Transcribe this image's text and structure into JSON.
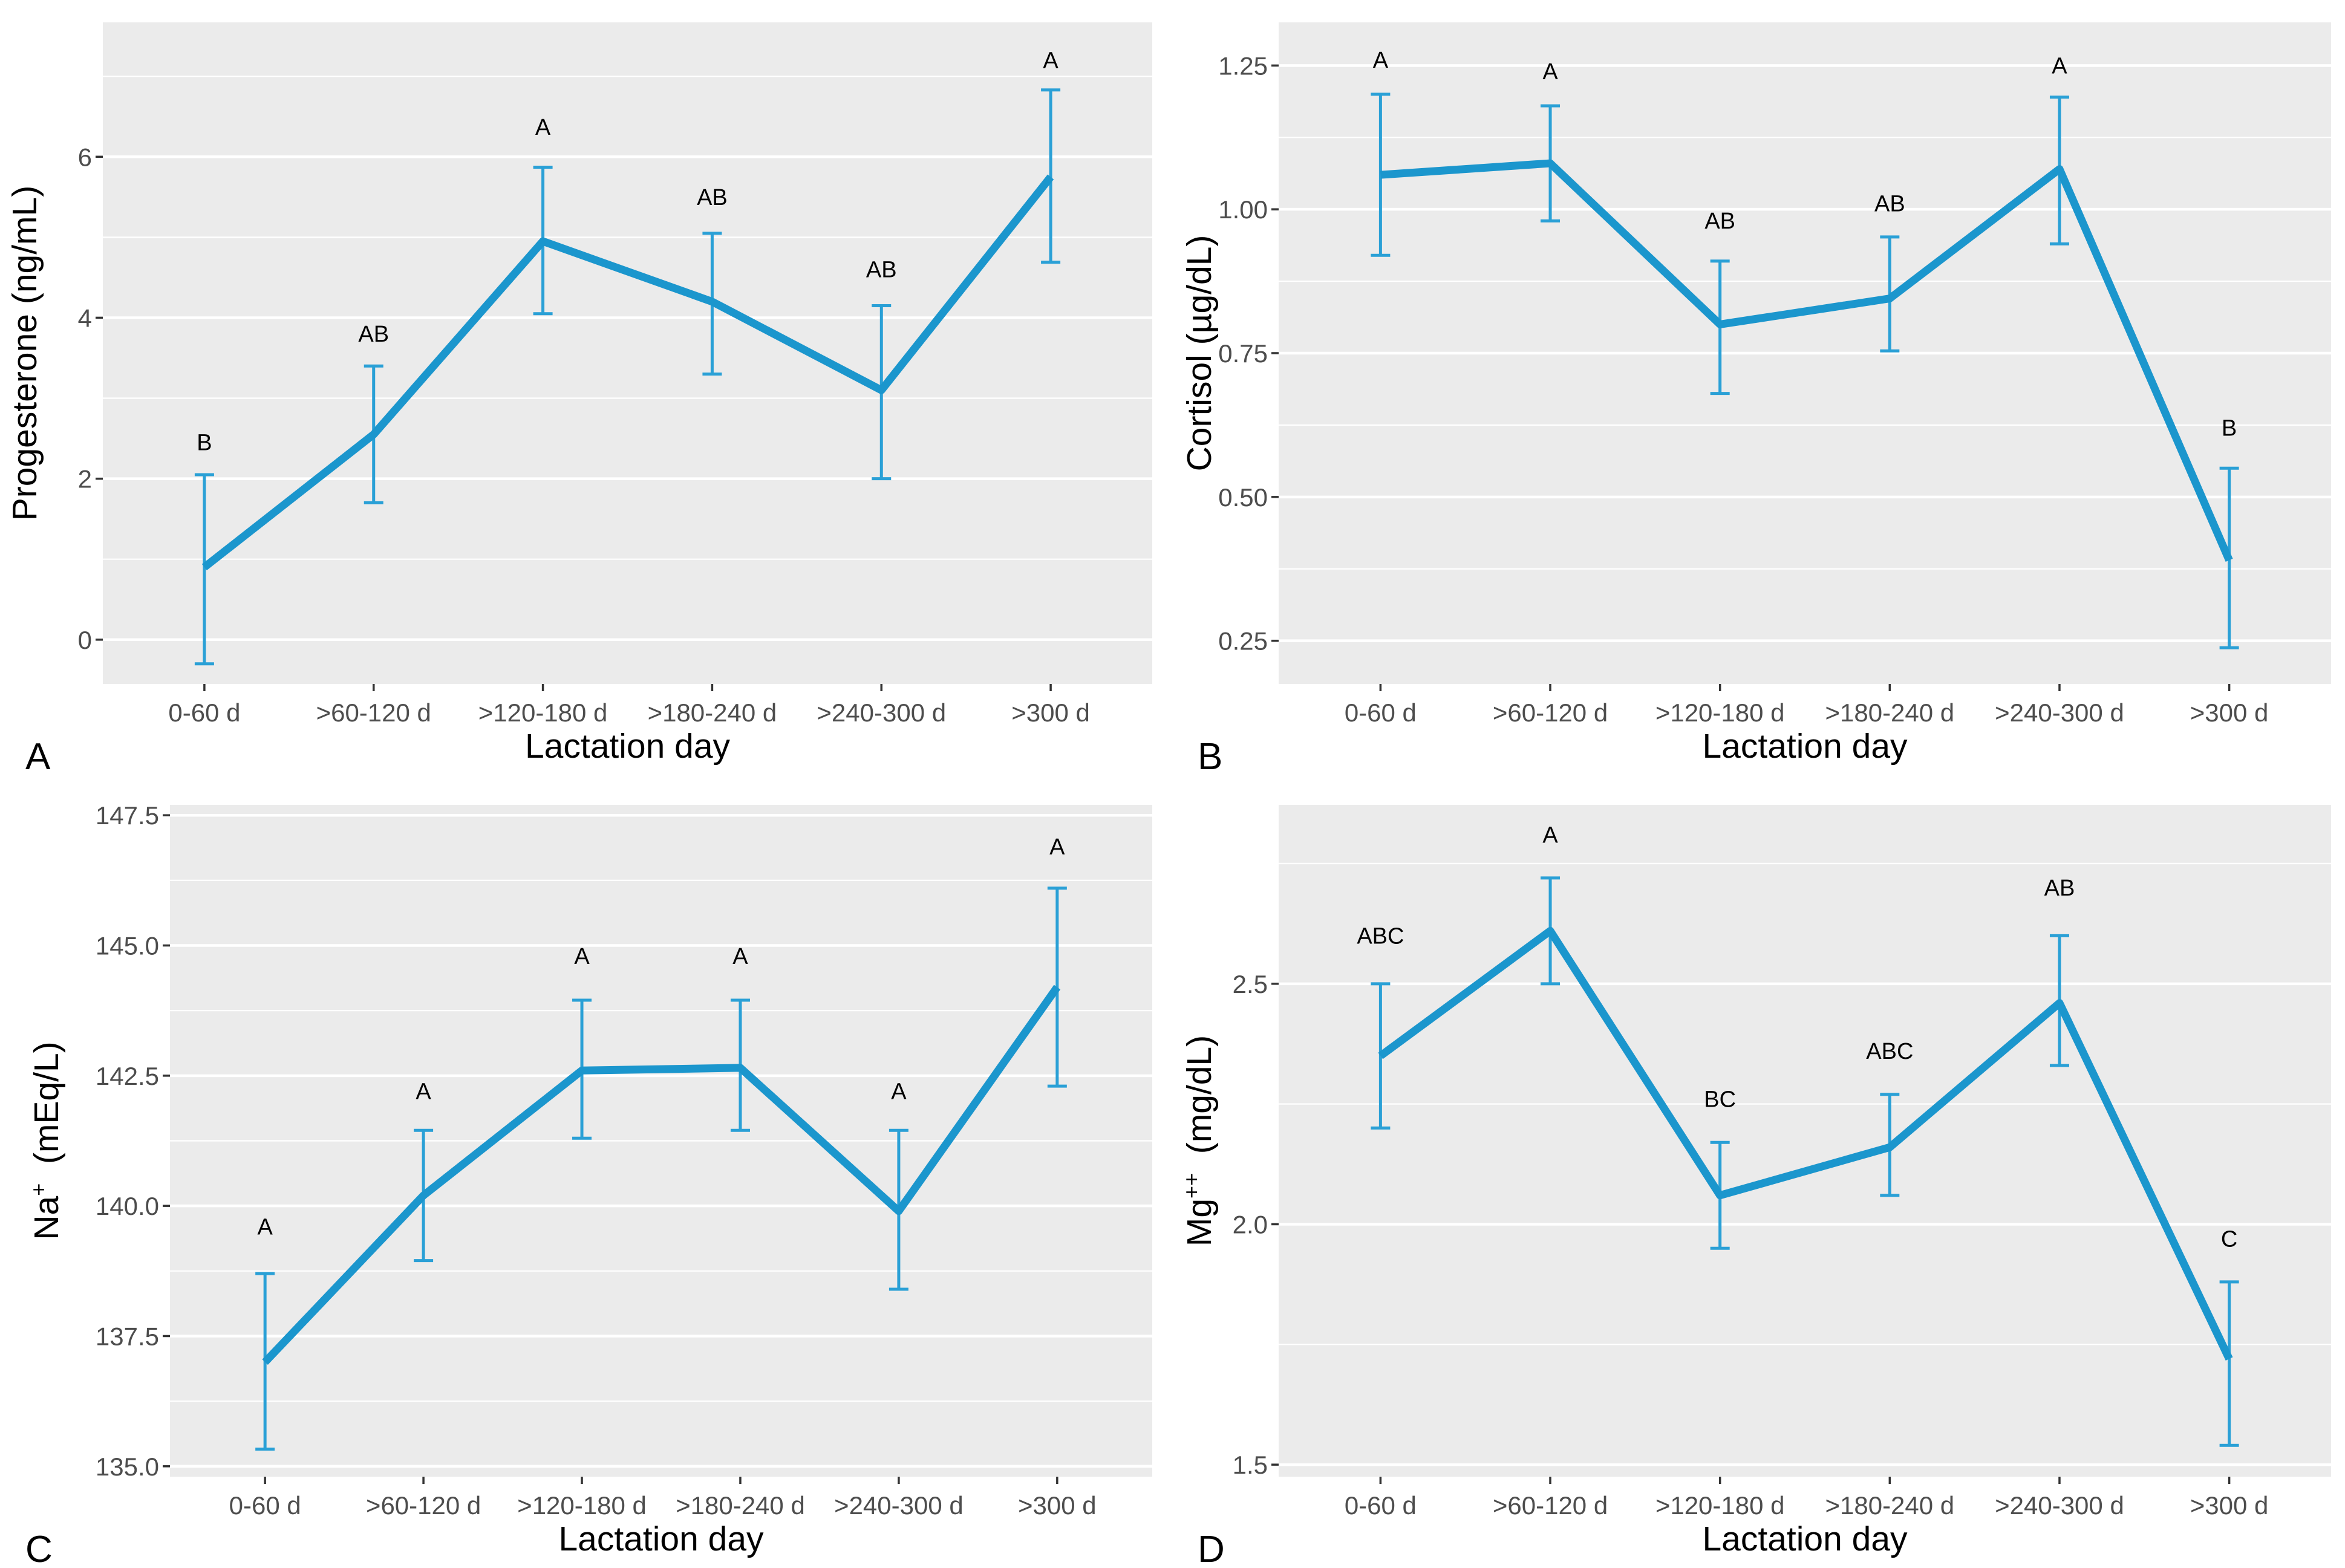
{
  "figure": {
    "background": "#FFFFFF",
    "panel_bg": "#EBEBEB",
    "grid_color": "#FFFFFF",
    "line_color": "#1B96CD",
    "errorbar_color": "#2AA0D6",
    "tick_label_color": "#4D4D4D",
    "tick_mark_color": "#333333",
    "text_color": "#000000"
  },
  "chart_data": [
    {
      "panel_label": "A",
      "type": "line",
      "title": "",
      "xlabel": "Lactation day",
      "ylabel": {
        "base": "Progesterone (ng/mL)",
        "sup": "",
        "unit": ""
      },
      "categories": [
        "0-60 d",
        ">60-120 d",
        ">120-180 d",
        ">180-240 d",
        ">240-300 d",
        ">300 d"
      ],
      "values": [
        0.9,
        2.55,
        4.95,
        4.2,
        3.1,
        5.75
      ],
      "err_low": [
        -0.3,
        1.7,
        4.05,
        3.3,
        2.0,
        4.69
      ],
      "err_high": [
        2.05,
        3.4,
        5.87,
        5.05,
        4.15,
        6.83
      ],
      "sig_letters": [
        "B",
        "AB",
        "A",
        "AB",
        "AB",
        "A"
      ],
      "sig_letter_y": [
        2.45,
        3.8,
        6.37,
        5.5,
        4.6,
        7.2
      ],
      "ylim": [
        -0.55,
        7.67
      ],
      "yticks": [
        0,
        2,
        4,
        6
      ],
      "ytick_labels": [
        "0",
        "2",
        "4",
        "6"
      ],
      "yticks_minor": [
        1,
        3,
        5,
        7
      ],
      "grid": true,
      "legend": "none"
    },
    {
      "panel_label": "B",
      "type": "line",
      "title": "",
      "xlabel": "Lactation day",
      "ylabel": {
        "base": "Cortisol (µg/dL)",
        "sup": "",
        "unit": ""
      },
      "categories": [
        "0-60 d",
        ">60-120 d",
        ">120-180 d",
        ">180-240 d",
        ">240-300 d",
        ">300 d"
      ],
      "values": [
        1.06,
        1.08,
        0.8,
        0.845,
        1.07,
        0.39
      ],
      "err_low": [
        0.92,
        0.98,
        0.68,
        0.754,
        0.94,
        0.238
      ],
      "err_high": [
        1.2,
        1.18,
        0.91,
        0.952,
        1.195,
        0.55
      ],
      "sig_letters": [
        "A",
        "A",
        "AB",
        "AB",
        "A",
        "B"
      ],
      "sig_letter_y": [
        1.26,
        1.24,
        0.98,
        1.01,
        1.25,
        0.62
      ],
      "ylim": [
        0.175,
        1.325
      ],
      "yticks": [
        0.25,
        0.5,
        0.75,
        1.0,
        1.25
      ],
      "ytick_labels": [
        "0.25",
        "0.50",
        "0.75",
        "1.00",
        "1.25"
      ],
      "yticks_minor": [
        0.375,
        0.625,
        0.875,
        1.125
      ],
      "grid": true,
      "legend": "none"
    },
    {
      "panel_label": "C",
      "type": "line",
      "title": "",
      "xlabel": "Lactation day",
      "ylabel": {
        "base": "Na",
        "sup": "+",
        "unit": "  (mEq/L)"
      },
      "categories": [
        "0-60 d",
        ">60-120 d",
        ">120-180 d",
        ">180-240 d",
        ">240-300 d",
        ">300 d"
      ],
      "values": [
        137.0,
        140.2,
        142.6,
        142.65,
        139.9,
        144.2
      ],
      "err_low": [
        135.33,
        138.95,
        141.3,
        141.45,
        138.4,
        142.3
      ],
      "err_high": [
        138.7,
        141.45,
        143.95,
        143.95,
        141.45,
        146.1
      ],
      "sig_letters": [
        "A",
        "A",
        "A",
        "A",
        "A",
        "A"
      ],
      "sig_letter_y": [
        139.6,
        142.2,
        144.8,
        144.8,
        142.2,
        146.9
      ],
      "ylim": [
        134.8,
        147.7
      ],
      "yticks": [
        135.0,
        137.5,
        140.0,
        142.5,
        145.0,
        147.5
      ],
      "ytick_labels": [
        "135.0",
        "137.5",
        "140.0",
        "142.5",
        "145.0",
        "147.5"
      ],
      "yticks_minor": [
        136.25,
        138.75,
        141.25,
        143.75,
        146.25
      ],
      "grid": true,
      "legend": "none"
    },
    {
      "panel_label": "D",
      "type": "line",
      "title": "",
      "xlabel": "Lactation day",
      "ylabel": {
        "base": "Mg",
        "sup": "++",
        "unit": "  (mg/dL)"
      },
      "categories": [
        "0-60 d",
        ">60-120 d",
        ">120-180 d",
        ">180-240 d",
        ">240-300 d",
        ">300 d"
      ],
      "values": [
        2.35,
        2.61,
        2.06,
        2.16,
        2.46,
        1.72
      ],
      "err_low": [
        2.2,
        2.5,
        1.95,
        2.06,
        2.33,
        1.54
      ],
      "err_high": [
        2.5,
        2.72,
        2.17,
        2.27,
        2.6,
        1.88
      ],
      "sig_letters": [
        "ABC",
        "A",
        "BC",
        "ABC",
        "AB",
        "C"
      ],
      "sig_letter_y": [
        2.6,
        2.81,
        2.26,
        2.36,
        2.7,
        1.97
      ],
      "ylim": [
        1.475,
        2.872
      ],
      "yticks": [
        1.5,
        2.0,
        2.5
      ],
      "ytick_labels": [
        "1.5",
        "2.0",
        "2.5"
      ],
      "yticks_minor": [
        1.75,
        2.25,
        2.75
      ],
      "grid": true,
      "legend": "none"
    }
  ]
}
